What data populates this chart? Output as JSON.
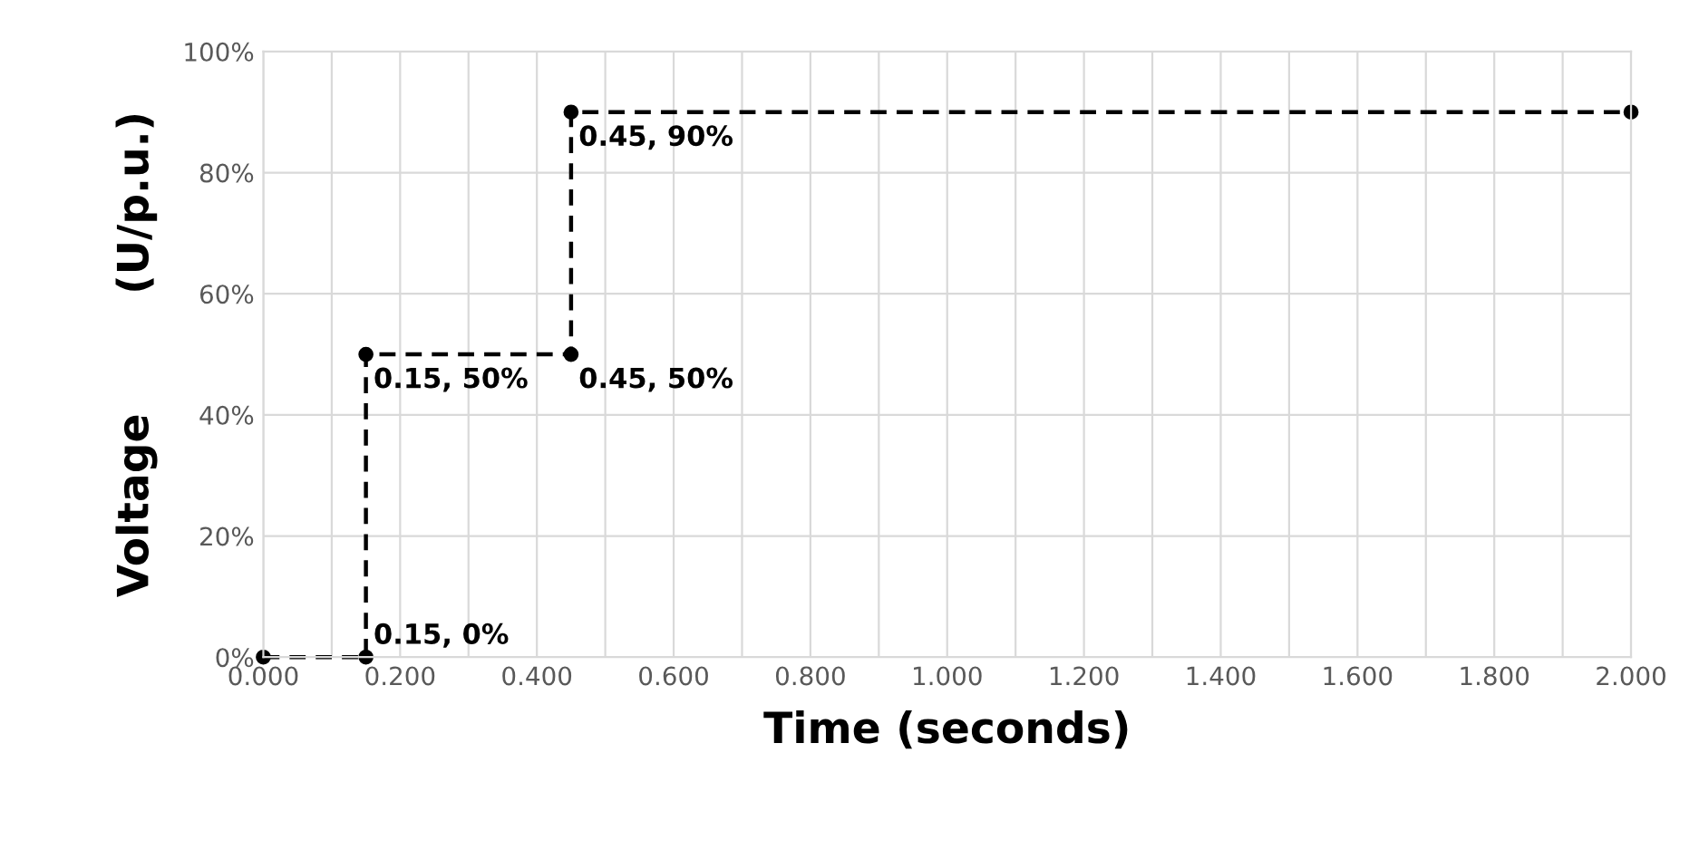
{
  "chart_data": {
    "type": "line",
    "xlabel": "Time (seconds)",
    "ylabel": "Voltage        (U/p.u.)",
    "x": [
      0,
      0.15,
      0.15,
      0.45,
      0.45,
      2.0
    ],
    "series": [
      {
        "color": "#000000",
        "values": [
          0,
          0,
          50,
          50,
          90,
          90
        ],
        "value_labels": [
          null,
          "0.15, 0%",
          "0.15, 50%",
          "0.45, 50%",
          "0.45, 90%",
          null
        ]
      }
    ],
    "xlim": [
      0,
      2
    ],
    "xticks": [
      {
        "value": 0,
        "label": "0.000"
      },
      {
        "value": 0.1,
        "label": null
      },
      {
        "value": 0.2,
        "label": "0.200"
      },
      {
        "value": 0.3,
        "label": null
      },
      {
        "value": 0.4,
        "label": "0.400"
      },
      {
        "value": 0.5,
        "label": null
      },
      {
        "value": 0.6,
        "label": "0.600"
      },
      {
        "value": 0.7,
        "label": null
      },
      {
        "value": 0.8,
        "label": "0.800"
      },
      {
        "value": 0.9,
        "label": null
      },
      {
        "value": 1.0,
        "label": "1.000"
      },
      {
        "value": 1.1,
        "label": null
      },
      {
        "value": 1.2,
        "label": "1.200"
      },
      {
        "value": 1.3,
        "label": null
      },
      {
        "value": 1.4,
        "label": "1.400"
      },
      {
        "value": 1.5,
        "label": null
      },
      {
        "value": 1.6,
        "label": "1.600"
      },
      {
        "value": 1.7,
        "label": null
      },
      {
        "value": 1.8,
        "label": "1.800"
      },
      {
        "value": 1.9,
        "label": null
      },
      {
        "value": 2.0,
        "label": "2.000"
      }
    ],
    "ylim": [
      0,
      100
    ],
    "yticks": [
      {
        "value": 0,
        "label": "0%"
      },
      {
        "value": 20,
        "label": "20%"
      },
      {
        "value": 40,
        "label": "40%"
      },
      {
        "value": 60,
        "label": "60%"
      },
      {
        "value": 80,
        "label": "80%"
      },
      {
        "value": 100,
        "label": "100%"
      }
    ],
    "grid": true,
    "marker": "circle",
    "line_style": "dashed"
  }
}
